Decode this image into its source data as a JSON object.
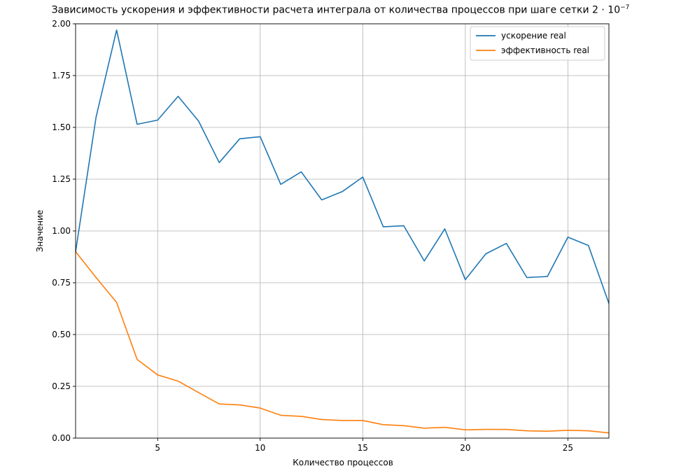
{
  "title_main": "Зависимость ускорения и эффективности расчета интеграла от количества процессов при шаге сетки 2 · 10",
  "title_exp": "−7",
  "chart_data": {
    "type": "line",
    "title": "Зависимость ускорения и эффективности расчета интеграла от количества процессов при шаге сетки 2 · 10^−7",
    "xlabel": "Количество процессов",
    "ylabel": "Значение",
    "xlim": [
      1,
      27
    ],
    "ylim": [
      0,
      2
    ],
    "grid": true,
    "legend_position": "top-right",
    "x_ticks": [
      5,
      10,
      15,
      20,
      25
    ],
    "y_ticks": [
      "0.00",
      "0.25",
      "0.50",
      "0.75",
      "1.00",
      "1.25",
      "1.50",
      "1.75",
      "2.00"
    ],
    "x": [
      1,
      2,
      3,
      4,
      5,
      6,
      7,
      8,
      9,
      10,
      11,
      12,
      13,
      14,
      15,
      16,
      17,
      18,
      19,
      20,
      21,
      22,
      23,
      24,
      25,
      26,
      27
    ],
    "series": [
      {
        "name": "ускорение real",
        "color": "#1f77b4",
        "values": [
          0.9,
          1.55,
          1.97,
          1.515,
          1.535,
          1.65,
          1.53,
          1.33,
          1.445,
          1.455,
          1.225,
          1.285,
          1.15,
          1.19,
          1.26,
          1.02,
          1.025,
          0.855,
          1.01,
          0.765,
          0.89,
          0.94,
          0.775,
          0.78,
          0.97,
          0.93,
          0.65
        ]
      },
      {
        "name": "эффективность real",
        "color": "#ff7f0e",
        "values": [
          0.9,
          0.775,
          0.655,
          0.38,
          0.305,
          0.275,
          0.22,
          0.165,
          0.16,
          0.145,
          0.11,
          0.105,
          0.09,
          0.085,
          0.085,
          0.065,
          0.06,
          0.048,
          0.052,
          0.04,
          0.042,
          0.042,
          0.035,
          0.033,
          0.038,
          0.035,
          0.025
        ]
      }
    ]
  }
}
